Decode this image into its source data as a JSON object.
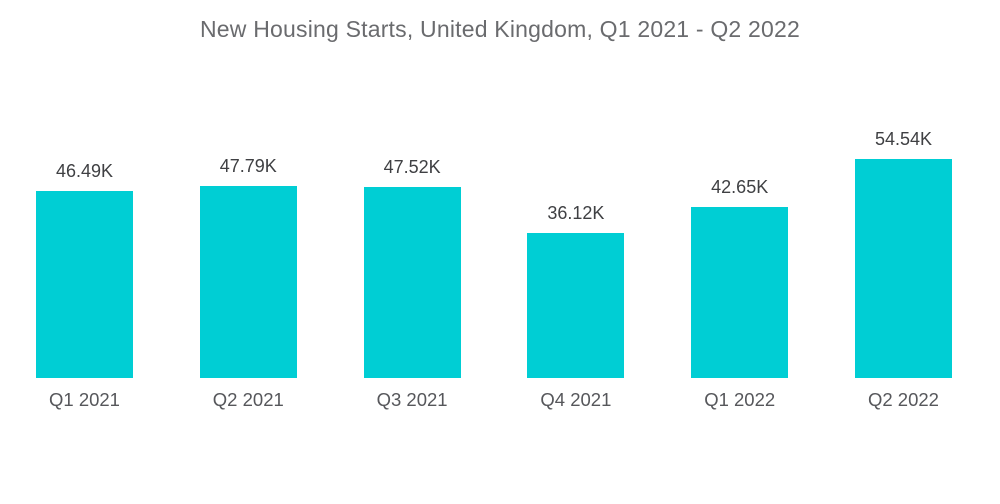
{
  "title": "New Housing Starts, United Kingdom, Q1 2021 - Q2 2022",
  "colors": {
    "background": "#ffffff",
    "bar": "#00CED4",
    "title_text": "#6a6b6e",
    "value_text": "#3f4043",
    "axis_text": "#56575b"
  },
  "chart_data": {
    "type": "bar",
    "title": "New Housing Starts, United Kingdom, Q1 2021 - Q2 2022",
    "categories": [
      "Q1 2021",
      "Q2 2021",
      "Q3 2021",
      "Q4 2021",
      "Q1 2022",
      "Q2 2022"
    ],
    "values": [
      46490,
      47790,
      47520,
      36120,
      42650,
      54540
    ],
    "value_labels": [
      "46.49K",
      "47.79K",
      "47.52K",
      "36.12K",
      "42.65K",
      "54.54K"
    ],
    "xlabel": "",
    "ylabel": "",
    "ylim": [
      0,
      54540
    ],
    "grid": false,
    "legend": false,
    "axes_visible": false,
    "bar_color": "#00CED4"
  }
}
